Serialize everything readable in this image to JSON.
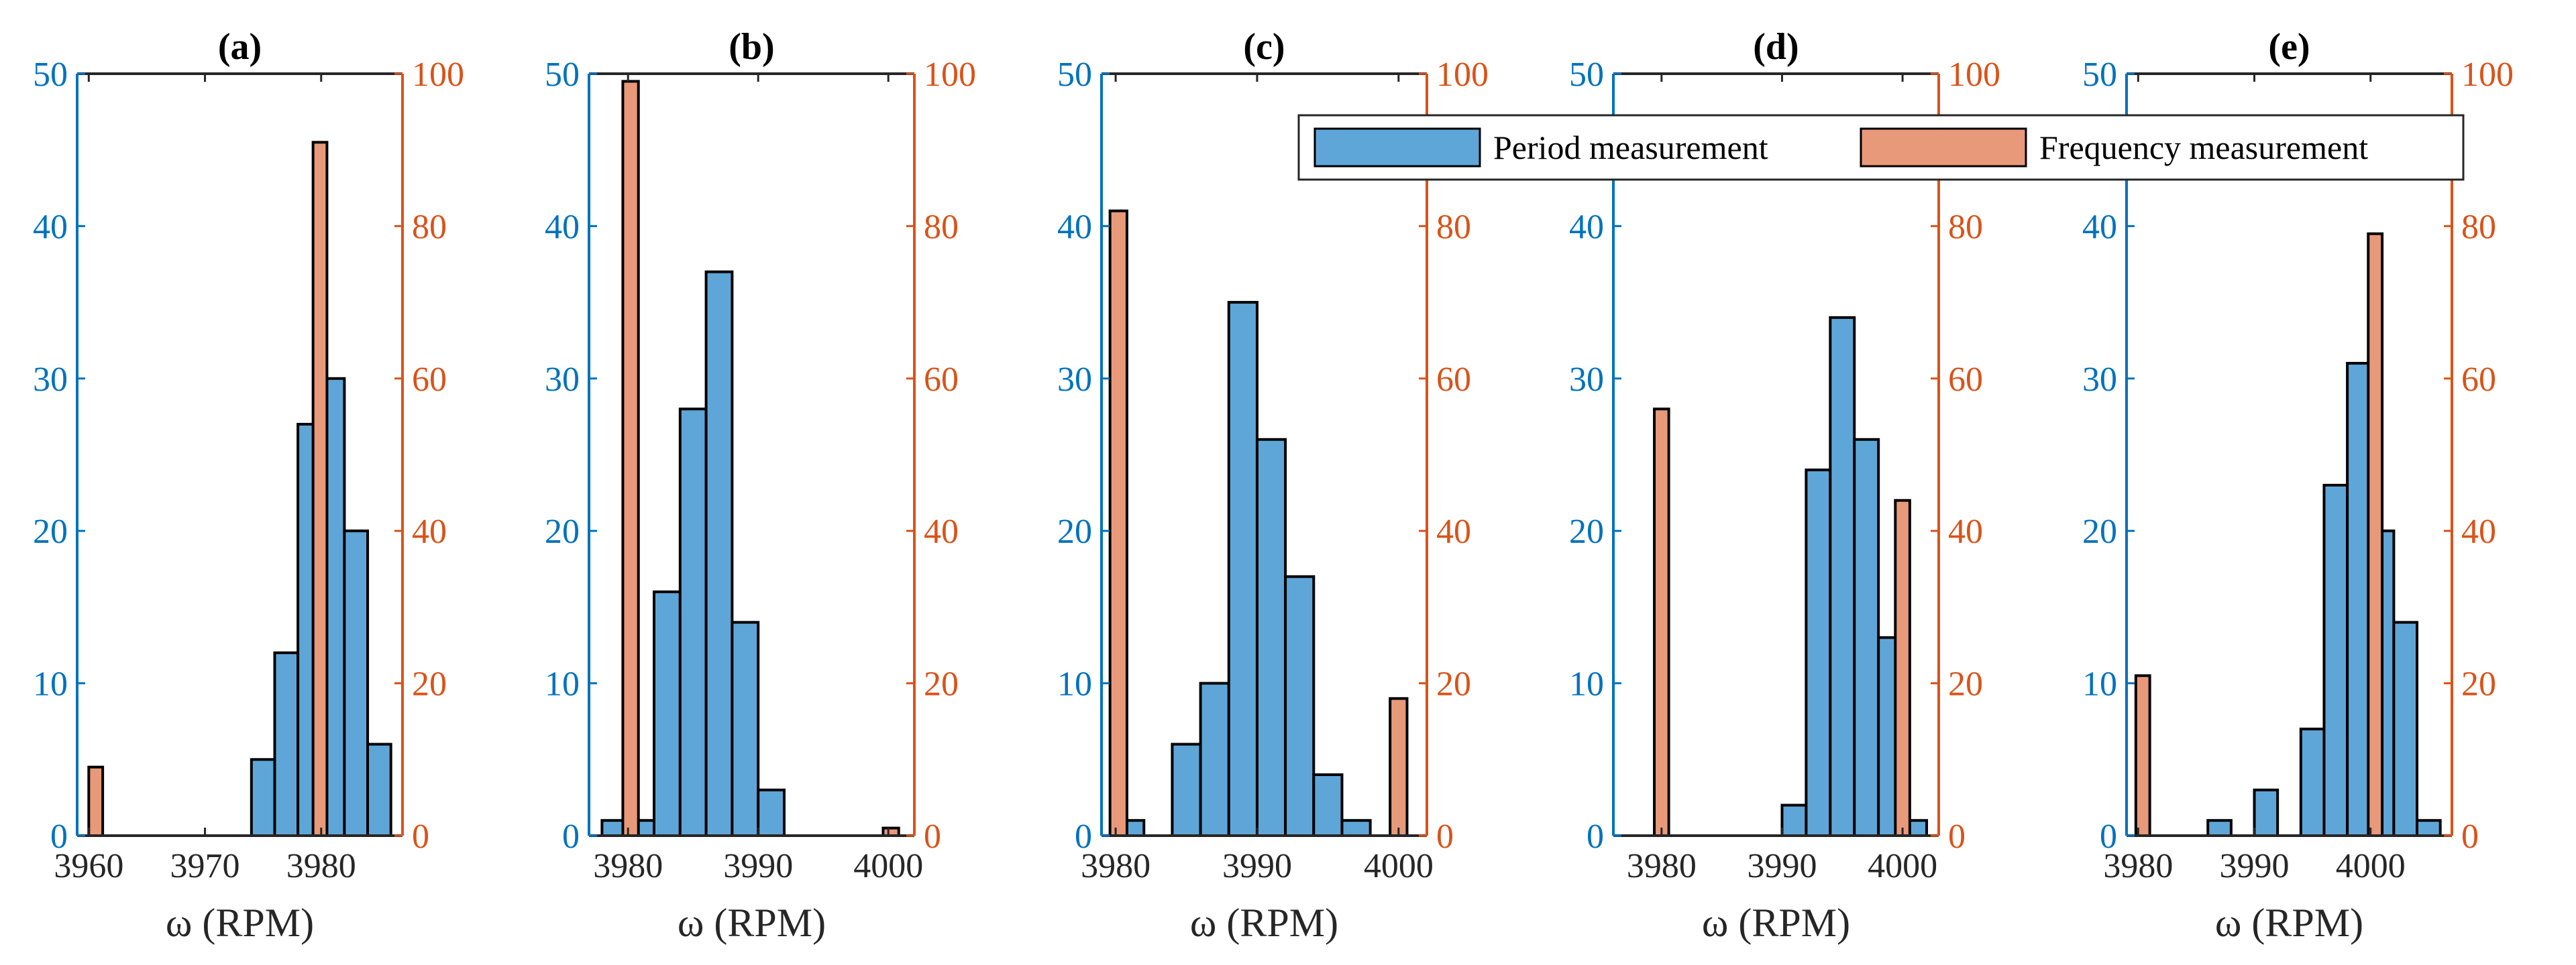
{
  "colors": {
    "left_axis": "#0072BD",
    "right_axis": "#D95319",
    "period_fill": "#5FA6D8",
    "frequency_fill": "#E8997A",
    "bar_edge": "#000000"
  },
  "legend": {
    "period_label": "Period measurement",
    "frequency_label": "Frequency measurement",
    "location": "top"
  },
  "chart_data": [
    {
      "type": "bar",
      "title": "(a)",
      "xlabel": "ω (RPM)",
      "xlim": [
        3959,
        3987
      ],
      "xticks": [
        3960,
        3970,
        3980
      ],
      "ylim_left": [
        0,
        50
      ],
      "yticks_left": [
        0,
        10,
        20,
        30,
        40,
        50
      ],
      "ylim_right": [
        0,
        100
      ],
      "yticks_right": [
        0,
        20,
        40,
        60,
        80,
        100
      ],
      "period": {
        "bin_edges": [
          3974,
          3976,
          3978,
          3980,
          3982,
          3984,
          3986
        ],
        "counts": [
          5,
          12,
          27,
          30,
          20,
          6
        ]
      },
      "frequency": {
        "bins": [
          [
            3960.0,
            3961.2
          ],
          [
            3979.3,
            3980.5
          ]
        ],
        "counts": [
          9,
          91
        ]
      }
    },
    {
      "type": "bar",
      "title": "(b)",
      "xlabel": "ω (RPM)",
      "xlim": [
        3977,
        4002
      ],
      "xticks": [
        3980,
        3990,
        4000
      ],
      "ylim_left": [
        0,
        50
      ],
      "yticks_left": [
        0,
        10,
        20,
        30,
        40,
        50
      ],
      "ylim_right": [
        0,
        100
      ],
      "yticks_right": [
        0,
        20,
        40,
        60,
        80,
        100
      ],
      "period": {
        "bin_edges": [
          3978,
          3980,
          3982,
          3984,
          3986,
          3988,
          3990,
          3992
        ],
        "counts": [
          1,
          1,
          16,
          28,
          37,
          14,
          3
        ]
      },
      "frequency": {
        "bins": [
          [
            3979.6,
            3980.8
          ],
          [
            3999.6,
            4000.8
          ]
        ],
        "counts": [
          99,
          1
        ]
      }
    },
    {
      "type": "bar",
      "title": "(c)",
      "xlabel": "ω (RPM)",
      "xlim": [
        3979,
        4002
      ],
      "xticks": [
        3980,
        3990,
        4000
      ],
      "ylim_left": [
        0,
        50
      ],
      "yticks_left": [
        0,
        10,
        20,
        30,
        40,
        50
      ],
      "ylim_right": [
        0,
        100
      ],
      "yticks_right": [
        0,
        20,
        40,
        60,
        80,
        100
      ],
      "period": {
        "bin_edges": [
          3980,
          3982,
          3984,
          3986,
          3988,
          3990,
          3992,
          3994,
          3996,
          3998,
          4000
        ],
        "counts": [
          1,
          0,
          6,
          10,
          35,
          26,
          17,
          4,
          1,
          0
        ]
      },
      "frequency": {
        "bins": [
          [
            3979.6,
            3980.8
          ],
          [
            3999.4,
            4000.6
          ]
        ],
        "counts": [
          82,
          18
        ]
      }
    },
    {
      "type": "bar",
      "title": "(d)",
      "xlabel": "ω (RPM)",
      "xlim": [
        3976,
        4003
      ],
      "xticks": [
        3980,
        3990,
        4000
      ],
      "ylim_left": [
        0,
        50
      ],
      "yticks_left": [
        0,
        10,
        20,
        30,
        40,
        50
      ],
      "ylim_right": [
        0,
        100
      ],
      "yticks_right": [
        0,
        20,
        40,
        60,
        80,
        100
      ],
      "period": {
        "bin_edges": [
          3990,
          3992,
          3994,
          3996,
          3998,
          4000,
          4002
        ],
        "counts": [
          2,
          24,
          34,
          26,
          13,
          1
        ]
      },
      "frequency": {
        "bins": [
          [
            3979.4,
            3980.6
          ],
          [
            3999.4,
            4000.6
          ]
        ],
        "counts": [
          56,
          44
        ]
      }
    },
    {
      "type": "bar",
      "title": "(e)",
      "xlabel": "ω (RPM)",
      "xlim": [
        3979,
        4007
      ],
      "xticks": [
        3980,
        3990,
        4000
      ],
      "ylim_left": [
        0,
        50
      ],
      "yticks_left": [
        0,
        10,
        20,
        30,
        40,
        50
      ],
      "ylim_right": [
        0,
        100
      ],
      "yticks_right": [
        0,
        20,
        40,
        60,
        80,
        100
      ],
      "period": {
        "bin_edges": [
          3986,
          3988,
          3990,
          3992,
          3994,
          3996,
          3998,
          4000,
          4002,
          4004,
          4006
        ],
        "counts": [
          1,
          0,
          3,
          0,
          7,
          23,
          31,
          20,
          14,
          1
        ]
      },
      "frequency": {
        "bins": [
          [
            3979.8,
            3981.0
          ],
          [
            3999.8,
            4001.0
          ]
        ],
        "counts": [
          21,
          79
        ]
      }
    }
  ]
}
